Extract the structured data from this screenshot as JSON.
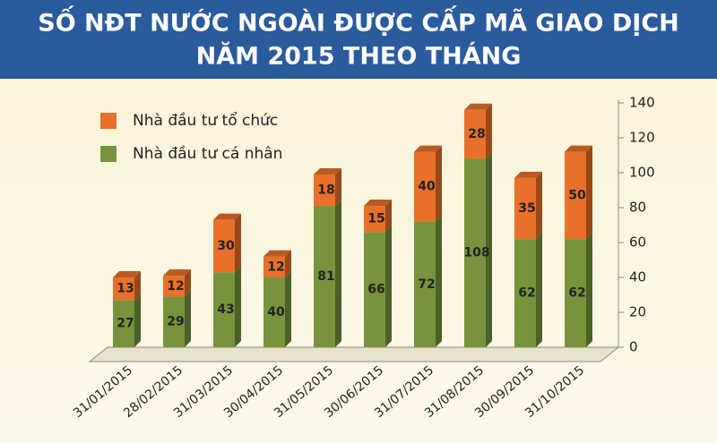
{
  "chart_data": {
    "type": "stacked-bar",
    "title": [
      "SỐ NĐT NƯỚC NGOÀI ĐƯỢC CẤP MÃ GIAO DỊCH",
      "NĂM 2015 THEO THÁNG"
    ],
    "categories": [
      "31/01/2015",
      "28/02/2015",
      "31/03/2015",
      "30/04/2015",
      "31/05/2015",
      "30/06/2015",
      "31/07/2015",
      "31/08/2015",
      "30/09/2015",
      "31/10/2015"
    ],
    "series": [
      {
        "name": "Nhà đầu tư cá nhân",
        "color": "#77943c",
        "values": [
          27,
          29,
          43,
          40,
          81,
          66,
          72,
          108,
          62,
          62
        ]
      },
      {
        "name": "Nhà đầu tư tổ chức",
        "color": "#e8702a",
        "values": [
          13,
          12,
          30,
          12,
          18,
          15,
          40,
          28,
          35,
          50
        ]
      }
    ],
    "ylim": [
      0,
      140
    ],
    "yticks": [
      0,
      20,
      40,
      60,
      80,
      100,
      120,
      140
    ]
  }
}
